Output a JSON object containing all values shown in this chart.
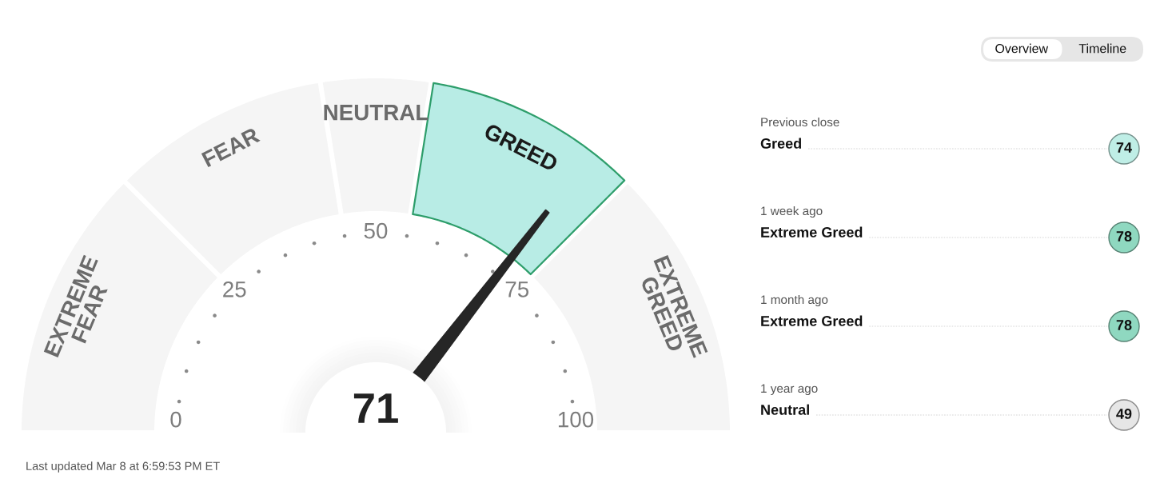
{
  "chart_data": [
    {
      "type": "donut",
      "categories": [
        "EXTREME\nFEAR",
        "FEAR",
        "NEUTRAL",
        "GREED",
        "EXTREME\nGREED"
      ],
      "values": [
        25,
        20,
        10,
        20,
        25
      ],
      "colors": [
        "#f5f5f5",
        "#f5f5f5",
        "#f5f5f5",
        "#b8ece5",
        "#f5f5f5"
      ],
      "needle": "GREED",
      "annotations": [
        "71",
        "0",
        "25",
        "50",
        "75",
        "100",
        "Last updated Mar 8 at 6:59:53 PM ET"
      ]
    },
    {
      "type": "other",
      "annotations": [
        "Overview",
        "Timeline"
      ]
    },
    {
      "type": "other",
      "categories": [
        "Greed",
        "Extreme Greed",
        "Extreme Greed",
        "Neutral"
      ],
      "annotations": [
        "Previous close",
        "1 week ago",
        "1 month ago",
        "1 year ago"
      ],
      "values": [
        74,
        78,
        78,
        49
      ],
      "colors": [
        "#bfeee6",
        "#8fd8c0",
        "#8fd8c0",
        "#e6e6e6"
      ],
      "data_labels": true
    }
  ]
}
